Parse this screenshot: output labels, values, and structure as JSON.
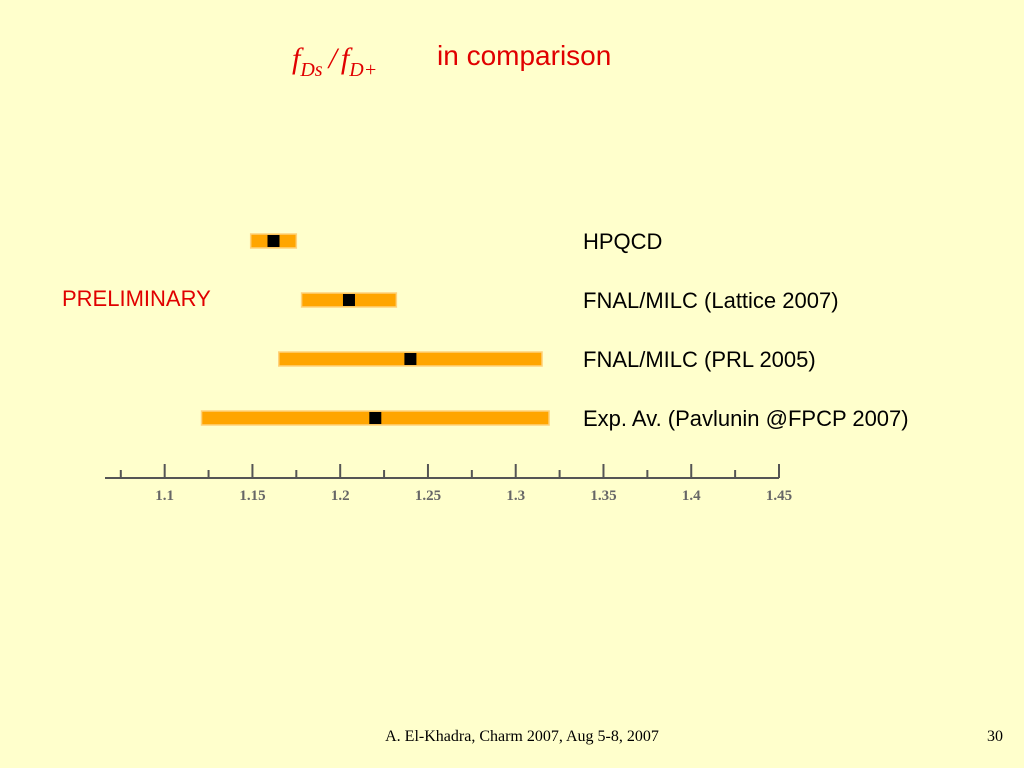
{
  "chart_data": {
    "type": "interval",
    "title_symbol": {
      "numerator": {
        "base": "f",
        "sub": "Ds"
      },
      "divider": "/",
      "denominator": {
        "base": "f",
        "sub": "D+"
      }
    },
    "title": "in comparison",
    "annotation": "PRELIMINARY",
    "categories": [
      "HPQCD",
      "FNAL/MILC (Lattice 2007)",
      "FNAL/MILC (PRL 2005)",
      "Exp. Av. (Pavlunin @FPCP 2007)"
    ],
    "values": [
      1.162,
      1.205,
      1.24,
      1.22
    ],
    "errors": [
      0.013,
      0.027,
      0.075,
      0.099
    ],
    "color": "#ffa500",
    "center_color": "#000000",
    "xlim": [
      1.066,
      1.45
    ],
    "xticks": [
      1.1,
      1.15,
      1.2,
      1.25,
      1.3,
      1.35,
      1.4,
      1.45
    ],
    "xminorticks": [
      1.075,
      1.125,
      1.175,
      1.225,
      1.275,
      1.325,
      1.375,
      1.425
    ]
  },
  "footer": "A. El-Khadra, Charm 2007, Aug 5-8, 2007",
  "page_number": 30
}
